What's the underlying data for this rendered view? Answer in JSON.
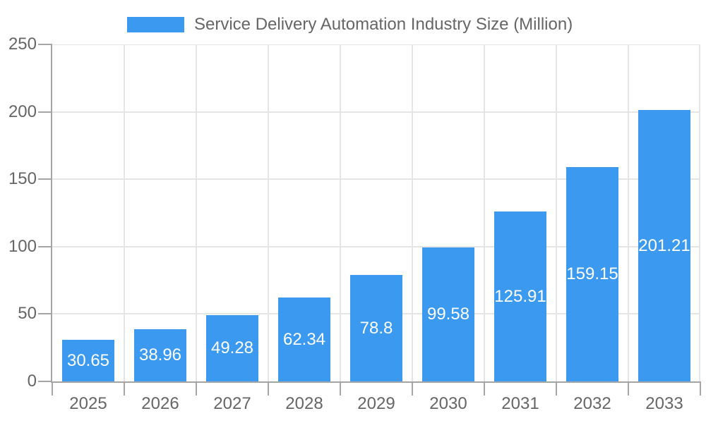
{
  "legend": {
    "label": "Service Delivery Automation Industry Size (Million)"
  },
  "chart_data": {
    "type": "bar",
    "title": "Service Delivery Automation Industry Size (Million)",
    "series_name": "Service Delivery Automation Industry Size (Million)",
    "categories": [
      "2025",
      "2026",
      "2027",
      "2028",
      "2029",
      "2030",
      "2031",
      "2032",
      "2033"
    ],
    "values": [
      30.65,
      38.96,
      49.28,
      62.34,
      78.8,
      99.58,
      125.91,
      159.15,
      201.21
    ],
    "xlabel": "",
    "ylabel": "",
    "ylim": [
      0,
      250
    ],
    "yticks": [
      0,
      50,
      100,
      150,
      200,
      250
    ],
    "grid": true,
    "legend_position": "top",
    "bar_color": "#3B99F0",
    "value_label_color": "#ffffff",
    "axis_text_color": "#666666",
    "grid_color": "#e5e5e5",
    "axis_line_color": "#a5a5a5"
  }
}
